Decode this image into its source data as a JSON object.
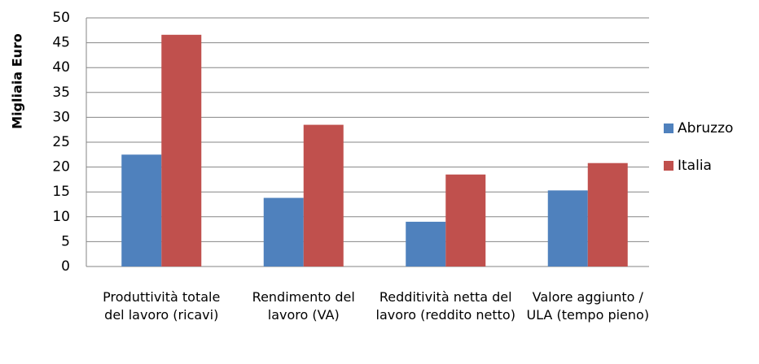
{
  "chart_data": {
    "type": "bar",
    "y_label": "Migliaia Euro",
    "categories": [
      "Produttività totale del lavoro (ricavi)",
      "Rendimento del lavoro (VA)",
      "Redditività netta del lavoro (reddito netto)",
      "Valore aggiunto / ULA (tempo pieno)"
    ],
    "series": [
      {
        "name": "Abruzzo",
        "color": "#4f81bd",
        "values": [
          22.5,
          13.8,
          9,
          15.3
        ]
      },
      {
        "name": "Italia",
        "color": "#c0504d",
        "values": [
          46.6,
          28.5,
          18.5,
          20.8
        ]
      }
    ],
    "ylim": [
      0,
      50
    ],
    "yticks": [
      0,
      5,
      10,
      15,
      20,
      25,
      30,
      35,
      40,
      45,
      50
    ],
    "grid": true,
    "legend": "right"
  }
}
